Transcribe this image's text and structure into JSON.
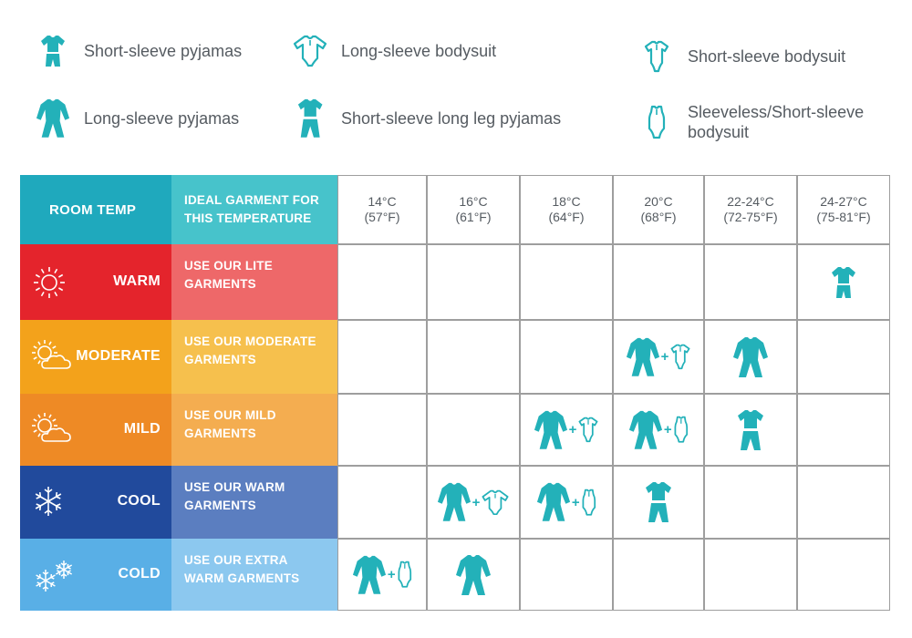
{
  "colors": {
    "teal": "#23b1b9",
    "warm": "#e4242c",
    "warm_garment": "#ee6869",
    "moderate": "#f3a21b",
    "moderate_garment": "#f6c04d",
    "mild": "#ee8a25",
    "mild_garment": "#f4ad50",
    "cool": "#214a9c",
    "cool_garment": "#5b7ec0",
    "cold": "#59afe6",
    "cold_garment": "#8cc8ef",
    "header_room": "#1fa9bd",
    "header_garment": "#47c3cb"
  },
  "legend": [
    {
      "icon": "short-sleeve-pyjamas-icon",
      "label": "Short-sleeve pyjamas"
    },
    {
      "icon": "long-sleeve-bodysuit-icon",
      "label": "Long-sleeve bodysuit"
    },
    {
      "icon": "short-sleeve-bodysuit-icon",
      "label": "Short-sleeve bodysuit"
    },
    {
      "icon": "long-sleeve-pyjamas-icon",
      "label": "Long-sleeve pyjamas"
    },
    {
      "icon": "short-sleeve-long-leg-pyjamas-icon",
      "label": "Short-sleeve long leg pyjamas"
    },
    {
      "icon": "sleeveless-bodysuit-icon",
      "label": "Sleeveless/Short-sleeve bodysuit"
    }
  ],
  "header": {
    "room_temp": "ROOM TEMP",
    "ideal_garment": "IDEAL GARMENT FOR THIS TEMPERATURE",
    "temps": [
      {
        "c": "14°C",
        "f": "(57°F)"
      },
      {
        "c": "16°C",
        "f": "(61°F)"
      },
      {
        "c": "18°C",
        "f": "(64°F)"
      },
      {
        "c": "20°C",
        "f": "(68°F)"
      },
      {
        "c": "22-24°C",
        "f": "(72-75°F)"
      },
      {
        "c": "24-27°C",
        "f": "(75-81°F)"
      }
    ]
  },
  "rows": [
    {
      "name": "WARM",
      "icon": "sun-icon",
      "garment": "USE OUR LITE GARMENTS",
      "cells": [
        [],
        [],
        [],
        [],
        [],
        [
          "short-sleeve-pyjamas-icon"
        ]
      ]
    },
    {
      "name": "MODERATE",
      "icon": "sun-cloud-icon",
      "garment": "USE OUR MODERATE GARMENTS",
      "cells": [
        [],
        [],
        [],
        [
          "long-sleeve-pyjamas-icon",
          "short-sleeve-bodysuit-icon"
        ],
        [
          "long-sleeve-pyjamas-icon"
        ],
        []
      ]
    },
    {
      "name": "MILD",
      "icon": "sun-cloud-icon",
      "garment": "USE OUR MILD GARMENTS",
      "cells": [
        [],
        [],
        [
          "long-sleeve-pyjamas-icon",
          "short-sleeve-bodysuit-icon"
        ],
        [
          "long-sleeve-pyjamas-icon",
          "sleeveless-bodysuit-icon"
        ],
        [
          "short-sleeve-long-leg-pyjamas-icon"
        ],
        []
      ]
    },
    {
      "name": "COOL",
      "icon": "snowflake-icon",
      "garment": "USE OUR WARM GARMENTS",
      "cells": [
        [],
        [
          "long-sleeve-pyjamas-icon",
          "long-sleeve-bodysuit-icon"
        ],
        [
          "long-sleeve-pyjamas-icon",
          "sleeveless-bodysuit-icon"
        ],
        [
          "short-sleeve-long-leg-pyjamas-icon"
        ],
        [],
        []
      ]
    },
    {
      "name": "COLD",
      "icon": "snowflakes-icon",
      "garment": "USE OUR EXTRA WARM GARMENTS",
      "cells": [
        [
          "long-sleeve-pyjamas-icon",
          "sleeveless-bodysuit-icon"
        ],
        [
          "long-sleeve-pyjamas-icon"
        ],
        [],
        [],
        [],
        []
      ]
    }
  ]
}
